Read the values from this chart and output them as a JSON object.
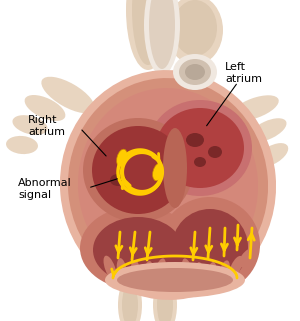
{
  "bg_color": "#ffffff",
  "labels": {
    "right_atrium": "Right\natrium",
    "left_atrium": "Left\natrium",
    "abnormal_signal": "Abnormal\nsignal"
  },
  "arrow_color": "#ffcc00",
  "arrow_edge_color": "#cc8800",
  "text_color": "#000000",
  "font_size": 8,
  "heart_outer": "#e8b4a0",
  "heart_mid": "#d4907a",
  "heart_wall": "#c8887a",
  "ra_color": "#9b3535",
  "la_color": "#b04040",
  "rv_wall": "#c87868",
  "lv_wall": "#c87868",
  "dark_chamber": "#7a2828",
  "septum_color": "#b06050",
  "vessel_color": "#e8d5c0",
  "vessel_inner": "#dcc8b0",
  "aorta_white": "#f0e8e0",
  "aorta_inner": "#e0d0c0"
}
